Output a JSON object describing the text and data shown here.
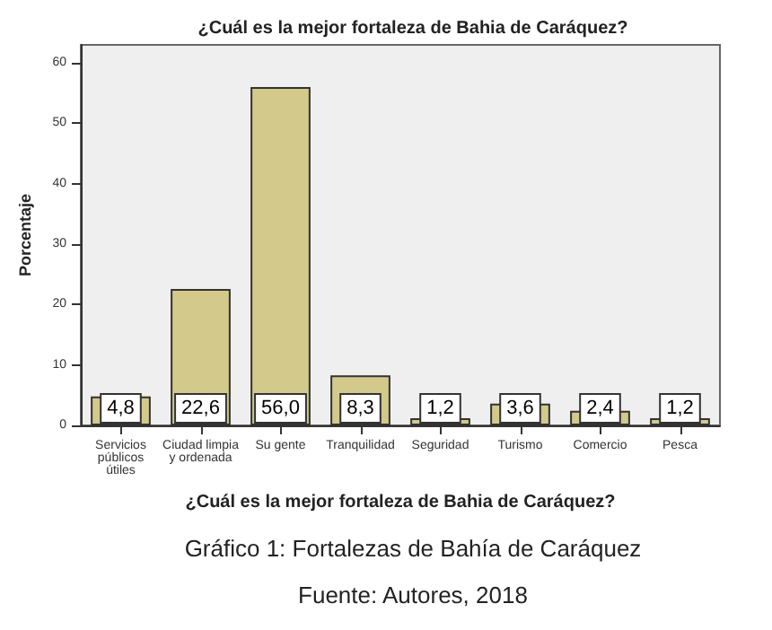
{
  "chart_data": {
    "type": "bar",
    "title": "¿Cuál es la mejor fortaleza de Bahia de Caráquez?",
    "xlabel": "¿Cuál es la mejor fortaleza de Bahia de Caráquez?",
    "ylabel": "Porcentaje",
    "categories": [
      "Servicios\npúblicos\nútiles",
      "Ciudad limpia\ny ordenada",
      "Su gente",
      "Tranquilidad",
      "Seguridad",
      "Turismo",
      "Comercio",
      "Pesca"
    ],
    "values": [
      4.8,
      22.6,
      56.0,
      8.3,
      1.2,
      3.6,
      2.4,
      1.2
    ],
    "value_labels": [
      "4,8",
      "22,6",
      "56,0",
      "8,3",
      "1,2",
      "3,6",
      "2,4",
      "1,2"
    ],
    "color": "#d2c98b",
    "ylim": [
      0,
      63
    ],
    "yticks": [
      0,
      10,
      20,
      30,
      40,
      50,
      60
    ],
    "annotations": [
      "Gráfico 1: Fortalezas de Bahía de Caráquez",
      "Fuente: Autores, 2018"
    ]
  }
}
